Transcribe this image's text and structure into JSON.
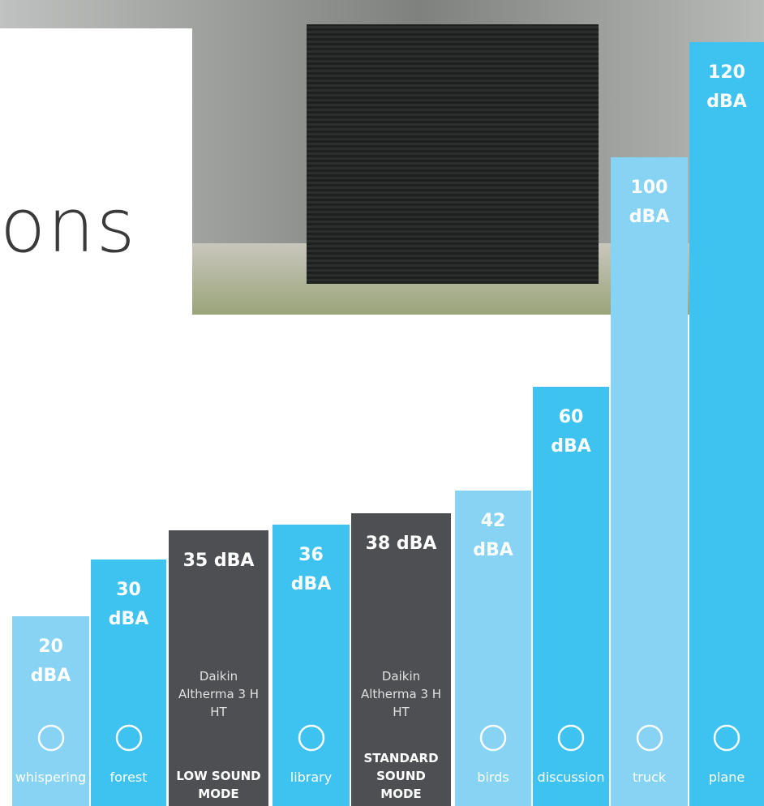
{
  "heading_fragment": "ons",
  "chart_data": {
    "type": "bar",
    "categories": [
      "whispering",
      "forest",
      "LOW SOUND MODE",
      "library",
      "STANDARD SOUND MODE",
      "birds",
      "discussion",
      "truck",
      "plane"
    ],
    "values": [
      20,
      30,
      35,
      36,
      38,
      42,
      60,
      100,
      120
    ],
    "value_labels": [
      "20 dBA",
      "30 dBA",
      "35 dBA",
      "36 dBA",
      "38 dBA",
      "42 dBA",
      "60 dBA",
      "100 dBA",
      "120 dBA"
    ],
    "colors": [
      "#86d3f4",
      "#3ec3f1",
      "#4d4f53",
      "#3ec3f1",
      "#4d4f53",
      "#86d3f4",
      "#3ec3f1",
      "#86d3f4",
      "#3ec3f1"
    ],
    "product": "Daikin Altherma 3 H HT"
  }
}
